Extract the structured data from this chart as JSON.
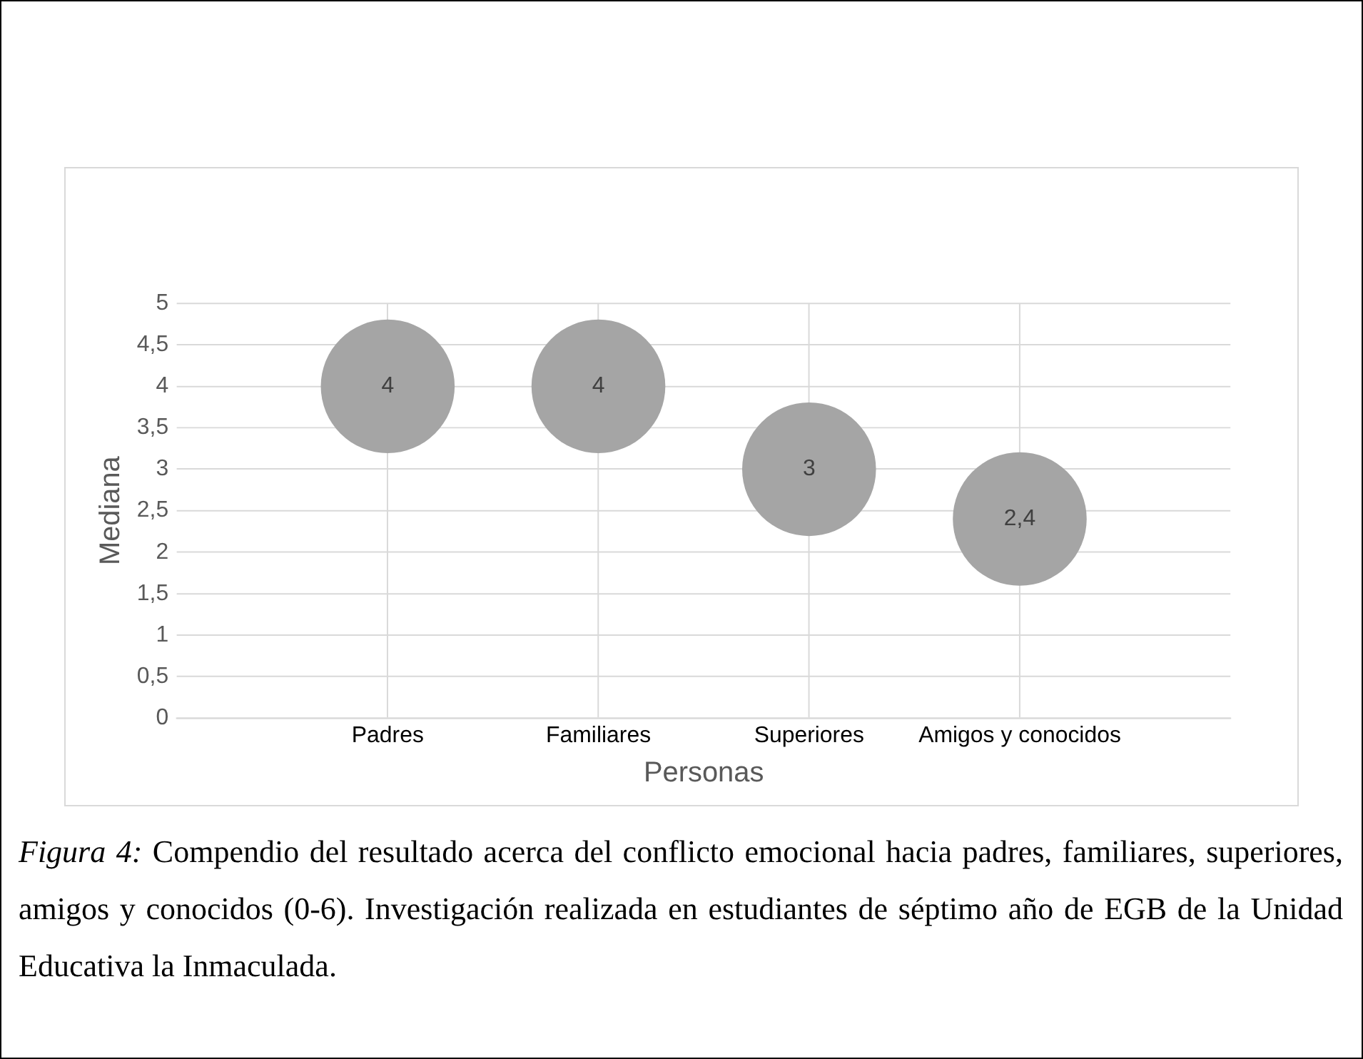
{
  "chart_data": {
    "type": "bubble",
    "xlabel": "Personas",
    "ylabel": "Mediana",
    "categories": [
      "Padres",
      "Familiares",
      "Superiores",
      "Amigos y conocidos"
    ],
    "values": [
      4,
      4,
      3,
      2.4
    ],
    "sizes": [
      1,
      1,
      1,
      1
    ],
    "color": "#a5a5a5",
    "value_labels": [
      "4",
      "4",
      "3",
      "2,4"
    ],
    "ylim": [
      0,
      5
    ],
    "yticks": [
      0,
      {
        "value": 0.5,
        "label": "0,5"
      },
      1,
      {
        "value": 1.5,
        "label": "1,5"
      },
      2,
      {
        "value": 2.5,
        "label": "2,5"
      },
      3,
      {
        "value": 3.5,
        "label": "3,5"
      },
      4,
      {
        "value": 4.5,
        "label": "4,5"
      },
      5
    ],
    "grid": true,
    "legend": false,
    "annotations": [
      "Figura 4:",
      "Compendio del resultado acerca del conflicto emocional hacia padres, familiares, superiores, amigos y conocidos (0-6). Investigación realizada en estudiantes de séptimo año de EGB de la Unidad Educativa la Inmaculada."
    ]
  }
}
